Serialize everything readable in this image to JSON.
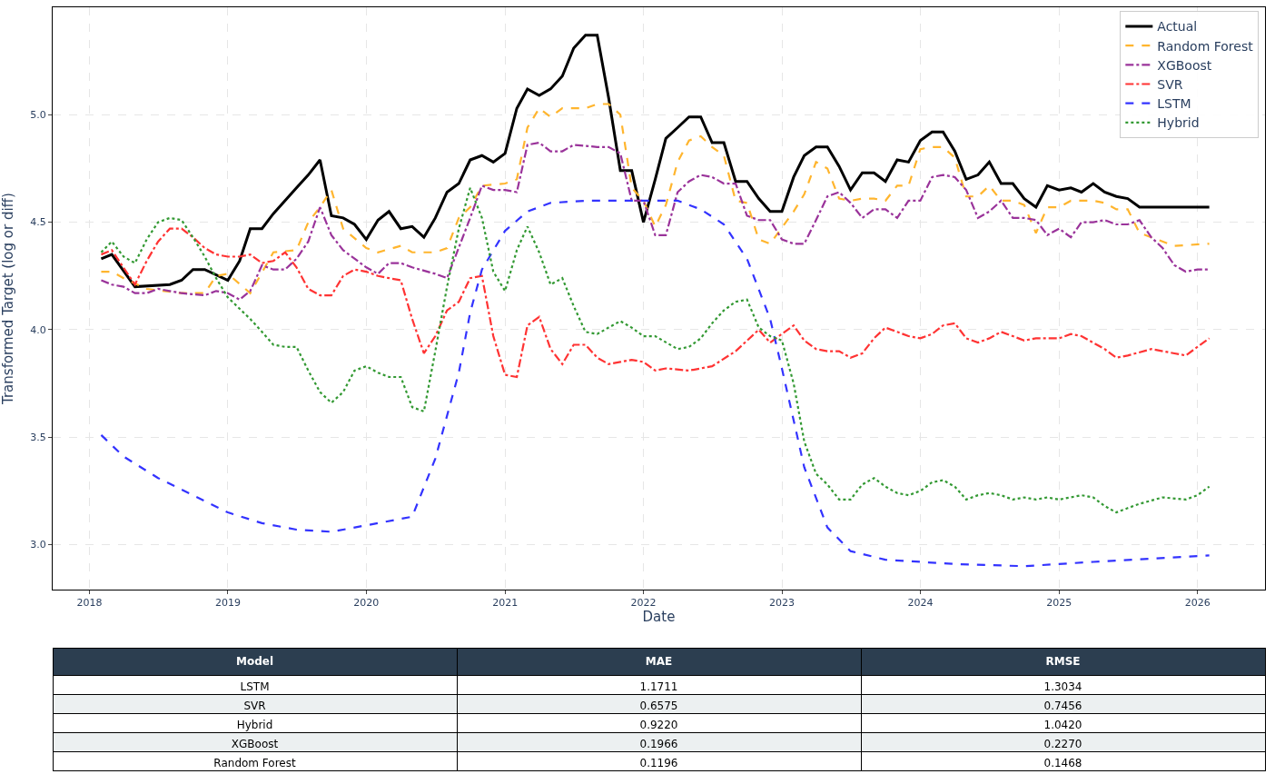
{
  "chart_data": [
    {
      "type": "line",
      "xlabel": "Date",
      "ylabel": "Transformed Target (log or diff)",
      "xlim": [
        "2017-09-26",
        "2026-06-28"
      ],
      "ylim": [
        2.79,
        5.5
      ],
      "xticks": [
        {
          "value": "2018-01-01",
          "label": "2018"
        },
        {
          "value": "2019-01-01",
          "label": "2019"
        },
        {
          "value": "2020-01-01",
          "label": "2020"
        },
        {
          "value": "2021-01-01",
          "label": "2021"
        },
        {
          "value": "2022-01-01",
          "label": "2022"
        },
        {
          "value": "2023-01-01",
          "label": "2023"
        },
        {
          "value": "2024-01-01",
          "label": "2024"
        },
        {
          "value": "2025-01-01",
          "label": "2025"
        },
        {
          "value": "2026-01-01",
          "label": "2026"
        }
      ],
      "yticks": [
        {
          "value": 3,
          "label": "3.0"
        },
        {
          "value": 3.5,
          "label": "3.5"
        },
        {
          "value": 4,
          "label": "4.0"
        },
        {
          "value": 4.5,
          "label": "4.5"
        },
        {
          "value": 5,
          "label": "5.0"
        }
      ],
      "grid": true,
      "legend": "top right",
      "marker": "none",
      "series": [
        {
          "name": "Actual",
          "color": "#000000",
          "line_style": "solid",
          "x": [
            "2018-02",
            "2018-03",
            "2018-05",
            "2018-08",
            "2018-09",
            "2018-10",
            "2018-11",
            "2019-01",
            "2019-02",
            "2019-03",
            "2019-04",
            "2019-05",
            "2019-07",
            "2019-08",
            "2019-09",
            "2019-10",
            "2019-11",
            "2019-12",
            "2020-01",
            "2020-02",
            "2020-03",
            "2020-04",
            "2020-05",
            "2020-06",
            "2020-07",
            "2020-08",
            "2020-09",
            "2020-10",
            "2020-11",
            "2020-12",
            "2021-01",
            "2021-02",
            "2021-03",
            "2021-04",
            "2021-05",
            "2021-06",
            "2021-07",
            "2021-08",
            "2021-09",
            "2021-10",
            "2021-11",
            "2021-12",
            "2022-01",
            "2022-02",
            "2022-03",
            "2022-04",
            "2022-05",
            "2022-06",
            "2022-07",
            "2022-08",
            "2022-09",
            "2022-10",
            "2022-11",
            "2022-12",
            "2023-01",
            "2023-02",
            "2023-03",
            "2023-04",
            "2023-05",
            "2023-06",
            "2023-07",
            "2023-08",
            "2023-09",
            "2023-10",
            "2023-11",
            "2023-12",
            "2024-01",
            "2024-02",
            "2024-03",
            "2024-04",
            "2024-05",
            "2024-06",
            "2024-07",
            "2024-08",
            "2024-09",
            "2024-10",
            "2024-11",
            "2024-12",
            "2025-01",
            "2025-02",
            "2025-03",
            "2025-04",
            "2025-05",
            "2025-06",
            "2025-07",
            "2025-08",
            "2026-02"
          ],
          "values": [
            4.33,
            4.35,
            4.2,
            4.21,
            4.23,
            4.28,
            4.28,
            4.23,
            4.32,
            4.47,
            4.47,
            4.54,
            4.66,
            4.72,
            4.79,
            4.53,
            4.52,
            4.49,
            4.42,
            4.51,
            4.55,
            4.47,
            4.48,
            4.43,
            4.52,
            4.64,
            4.68,
            4.79,
            4.81,
            4.78,
            4.82,
            5.03,
            5.12,
            5.09,
            5.12,
            5.18,
            5.31,
            5.37,
            5.37,
            5.08,
            4.74,
            4.74,
            4.5,
            4.7,
            4.89,
            4.94,
            4.99,
            4.99,
            4.87,
            4.87,
            4.69,
            4.69,
            4.61,
            4.55,
            4.55,
            4.71,
            4.81,
            4.85,
            4.85,
            4.76,
            4.65,
            4.73,
            4.73,
            4.69,
            4.79,
            4.78,
            4.88,
            4.92,
            4.92,
            4.83,
            4.7,
            4.72,
            4.78,
            4.68,
            4.68,
            4.61,
            4.57,
            4.67,
            4.65,
            4.66,
            4.64,
            4.68,
            4.64,
            4.62,
            4.61,
            4.57,
            4.57
          ]
        },
        {
          "name": "Random Forest",
          "color": "#ffb52e",
          "line_style": "dashed",
          "x": [
            "2018-02",
            "2018-03",
            "2018-04",
            "2018-06",
            "2018-09",
            "2018-11",
            "2018-12",
            "2019-01",
            "2019-03",
            "2019-05",
            "2019-07",
            "2019-08",
            "2019-09",
            "2019-10",
            "2019-11",
            "2020-01",
            "2020-02",
            "2020-04",
            "2020-05",
            "2020-07",
            "2020-08",
            "2020-09",
            "2020-10",
            "2020-11",
            "2021-01",
            "2021-02",
            "2021-03",
            "2021-04",
            "2021-05",
            "2021-06",
            "2021-08",
            "2021-09",
            "2021-10",
            "2021-11",
            "2021-12",
            "2022-01",
            "2022-02",
            "2022-03",
            "2022-04",
            "2022-05",
            "2022-06",
            "2022-07",
            "2022-08",
            "2022-09",
            "2022-10",
            "2022-11",
            "2022-12",
            "2023-02",
            "2023-03",
            "2023-04",
            "2023-05",
            "2023-06",
            "2023-07",
            "2023-08",
            "2023-09",
            "2023-10",
            "2023-11",
            "2023-12",
            "2024-01",
            "2024-02",
            "2024-03",
            "2024-04",
            "2024-05",
            "2024-06",
            "2024-07",
            "2024-08",
            "2024-09",
            "2024-10",
            "2024-11",
            "2024-12",
            "2025-01",
            "2025-02",
            "2025-04",
            "2025-05",
            "2025-06",
            "2025-07",
            "2025-08",
            "2025-09",
            "2025-11",
            "2026-02"
          ],
          "values": [
            4.27,
            4.27,
            4.24,
            4.19,
            4.17,
            4.17,
            4.25,
            4.26,
            4.17,
            4.36,
            4.37,
            4.5,
            4.57,
            4.65,
            4.47,
            4.38,
            4.36,
            4.39,
            4.36,
            4.36,
            4.38,
            4.52,
            4.57,
            4.67,
            4.68,
            4.7,
            4.94,
            5.03,
            4.99,
            5.03,
            5.03,
            5.05,
            5.05,
            5.0,
            4.66,
            4.6,
            4.48,
            4.58,
            4.78,
            4.88,
            4.9,
            4.85,
            4.81,
            4.6,
            4.59,
            4.42,
            4.4,
            4.55,
            4.63,
            4.78,
            4.75,
            4.61,
            4.6,
            4.61,
            4.61,
            4.6,
            4.67,
            4.67,
            4.84,
            4.85,
            4.85,
            4.8,
            4.62,
            4.62,
            4.67,
            4.6,
            4.6,
            4.58,
            4.45,
            4.57,
            4.57,
            4.6,
            4.6,
            4.59,
            4.56,
            4.56,
            4.45,
            4.43,
            4.39,
            4.4
          ]
        },
        {
          "name": "XGBoost",
          "color": "#9a339a",
          "line_style": "dashdot",
          "x": [
            "2018-02",
            "2018-03",
            "2018-04",
            "2018-05",
            "2018-06",
            "2018-07",
            "2018-09",
            "2018-11",
            "2018-12",
            "2019-01",
            "2019-02",
            "2019-03",
            "2019-04",
            "2019-05",
            "2019-06",
            "2019-07",
            "2019-08",
            "2019-09",
            "2019-10",
            "2019-11",
            "2020-01",
            "2020-02",
            "2020-03",
            "2020-04",
            "2020-05",
            "2020-07",
            "2020-08",
            "2020-10",
            "2020-11",
            "2020-12",
            "2021-01",
            "2021-02",
            "2021-03",
            "2021-04",
            "2021-05",
            "2021-06",
            "2021-07",
            "2021-09",
            "2021-10",
            "2021-11",
            "2021-12",
            "2022-01",
            "2022-02",
            "2022-03",
            "2022-04",
            "2022-05",
            "2022-06",
            "2022-07",
            "2022-08",
            "2022-09",
            "2022-10",
            "2022-11",
            "2022-12",
            "2023-01",
            "2023-02",
            "2023-03",
            "2023-04",
            "2023-05",
            "2023-06",
            "2023-07",
            "2023-08",
            "2023-09",
            "2023-10",
            "2023-11",
            "2023-12",
            "2024-01",
            "2024-02",
            "2024-03",
            "2024-04",
            "2024-05",
            "2024-06",
            "2024-07",
            "2024-08",
            "2024-09",
            "2024-10",
            "2024-11",
            "2024-12",
            "2025-01",
            "2025-02",
            "2025-03",
            "2025-04",
            "2025-05",
            "2025-06",
            "2025-07",
            "2025-08",
            "2025-09",
            "2025-10",
            "2025-11",
            "2025-12",
            "2026-01",
            "2026-02"
          ],
          "values": [
            4.23,
            4.21,
            4.2,
            4.17,
            4.17,
            4.19,
            4.17,
            4.16,
            4.18,
            4.17,
            4.14,
            4.18,
            4.3,
            4.28,
            4.28,
            4.33,
            4.41,
            4.57,
            4.44,
            4.37,
            4.29,
            4.26,
            4.31,
            4.31,
            4.29,
            4.26,
            4.24,
            4.52,
            4.67,
            4.65,
            4.65,
            4.64,
            4.86,
            4.87,
            4.83,
            4.83,
            4.86,
            4.85,
            4.85,
            4.82,
            4.6,
            4.6,
            4.44,
            4.44,
            4.64,
            4.69,
            4.72,
            4.71,
            4.68,
            4.68,
            4.53,
            4.51,
            4.51,
            4.42,
            4.4,
            4.4,
            4.51,
            4.62,
            4.64,
            4.59,
            4.52,
            4.56,
            4.56,
            4.52,
            4.6,
            4.6,
            4.71,
            4.72,
            4.71,
            4.65,
            4.52,
            4.55,
            4.6,
            4.52,
            4.52,
            4.51,
            4.44,
            4.47,
            4.43,
            4.5,
            4.5,
            4.51,
            4.49,
            4.49,
            4.51,
            4.43,
            4.38,
            4.3,
            4.27,
            4.28,
            4.28
          ]
        },
        {
          "name": "SVR",
          "color": "#ff3333",
          "line_style": "dashdot",
          "x": [
            "2018-02",
            "2018-03",
            "2018-05",
            "2018-06",
            "2018-07",
            "2018-08",
            "2018-09",
            "2018-10",
            "2018-11",
            "2018-12",
            "2019-01",
            "2019-02",
            "2019-03",
            "2019-04",
            "2019-05",
            "2019-06",
            "2019-07",
            "2019-08",
            "2019-09",
            "2019-10",
            "2019-11",
            "2019-12",
            "2020-01",
            "2020-02",
            "2020-03",
            "2020-04",
            "2020-05",
            "2020-06",
            "2020-07",
            "2020-08",
            "2020-09",
            "2020-10",
            "2020-11",
            "2020-12",
            "2021-01",
            "2021-02",
            "2021-03",
            "2021-04",
            "2021-05",
            "2021-06",
            "2021-07",
            "2021-08",
            "2021-09",
            "2021-10",
            "2021-11",
            "2021-12",
            "2022-01",
            "2022-02",
            "2022-03",
            "2022-05",
            "2022-07",
            "2022-09",
            "2022-11",
            "2022-12",
            "2023-01",
            "2023-02",
            "2023-03",
            "2023-04",
            "2023-05",
            "2023-06",
            "2023-07",
            "2023-08",
            "2023-09",
            "2023-10",
            "2023-11",
            "2023-12",
            "2024-01",
            "2024-02",
            "2024-03",
            "2024-04",
            "2024-05",
            "2024-06",
            "2024-07",
            "2024-08",
            "2024-09",
            "2024-10",
            "2024-11",
            "2024-12",
            "2025-01",
            "2025-02",
            "2025-03",
            "2025-05",
            "2025-06",
            "2025-07",
            "2025-09",
            "2025-11",
            "2025-12",
            "2026-02"
          ],
          "values": [
            4.35,
            4.37,
            4.21,
            4.32,
            4.41,
            4.47,
            4.47,
            4.43,
            4.38,
            4.35,
            4.34,
            4.34,
            4.35,
            4.31,
            4.32,
            4.36,
            4.29,
            4.19,
            4.16,
            4.16,
            4.25,
            4.28,
            4.27,
            4.25,
            4.24,
            4.23,
            4.05,
            3.89,
            3.97,
            4.09,
            4.13,
            4.24,
            4.25,
            3.97,
            3.79,
            3.78,
            4.02,
            4.06,
            3.91,
            3.84,
            3.93,
            3.93,
            3.87,
            3.84,
            3.85,
            3.86,
            3.85,
            3.81,
            3.82,
            3.81,
            3.83,
            3.9,
            4.0,
            3.94,
            3.98,
            4.02,
            3.95,
            3.91,
            3.9,
            3.9,
            3.87,
            3.89,
            3.96,
            4.01,
            3.99,
            3.97,
            3.96,
            3.98,
            4.02,
            4.03,
            3.96,
            3.94,
            3.96,
            3.99,
            3.97,
            3.95,
            3.96,
            3.96,
            3.96,
            3.98,
            3.97,
            3.91,
            3.87,
            3.88,
            3.91,
            3.89,
            3.88,
            3.96
          ]
        },
        {
          "name": "LSTM",
          "color": "#3333ff",
          "line_style": "dashed",
          "x": [
            "2018-02",
            "2018-04",
            "2018-07",
            "2018-10",
            "2019-01",
            "2019-04",
            "2019-07",
            "2019-10",
            "2020-01",
            "2020-05",
            "2020-07",
            "2020-09",
            "2020-10",
            "2020-11",
            "2021-01",
            "2021-03",
            "2021-05",
            "2021-08",
            "2022-04",
            "2022-06",
            "2022-08",
            "2022-10",
            "2022-12",
            "2023-01",
            "2023-03",
            "2023-05",
            "2023-07",
            "2023-10",
            "2024-04",
            "2024-10",
            "2025-04",
            "2026-02"
          ],
          "values": [
            3.51,
            3.41,
            3.31,
            3.23,
            3.15,
            3.1,
            3.07,
            3.06,
            3.09,
            3.13,
            3.4,
            3.8,
            4.08,
            4.28,
            4.46,
            4.55,
            4.59,
            4.6,
            4.6,
            4.56,
            4.49,
            4.33,
            4.05,
            3.82,
            3.36,
            3.08,
            2.97,
            2.93,
            2.91,
            2.9,
            2.92,
            2.95
          ]
        },
        {
          "name": "Hybrid",
          "color": "#339933",
          "line_style": "dotted",
          "x": [
            "2018-02",
            "2018-03",
            "2018-04",
            "2018-05",
            "2018-06",
            "2018-07",
            "2018-08",
            "2018-09",
            "2018-10",
            "2018-11",
            "2018-12",
            "2019-01",
            "2019-03",
            "2019-04",
            "2019-05",
            "2019-06",
            "2019-07",
            "2019-08",
            "2019-09",
            "2019-10",
            "2019-11",
            "2019-12",
            "2020-01",
            "2020-02",
            "2020-03",
            "2020-04",
            "2020-05",
            "2020-06",
            "2020-07",
            "2020-08",
            "2020-09",
            "2020-10",
            "2020-11",
            "2020-12",
            "2021-01",
            "2021-02",
            "2021-03",
            "2021-04",
            "2021-05",
            "2021-06",
            "2021-07",
            "2021-08",
            "2021-09",
            "2021-10",
            "2021-11",
            "2021-12",
            "2022-01",
            "2022-02",
            "2022-04",
            "2022-05",
            "2022-06",
            "2022-07",
            "2022-08",
            "2022-09",
            "2022-10",
            "2022-11",
            "2022-12",
            "2023-01",
            "2023-02",
            "2023-03",
            "2023-04",
            "2023-05",
            "2023-06",
            "2023-07",
            "2023-08",
            "2023-09",
            "2023-10",
            "2023-11",
            "2023-12",
            "2024-01",
            "2024-02",
            "2024-03",
            "2024-04",
            "2024-05",
            "2024-06",
            "2024-07",
            "2024-08",
            "2024-09",
            "2024-10",
            "2024-11",
            "2024-12",
            "2025-01",
            "2025-03",
            "2025-04",
            "2025-05",
            "2025-06",
            "2025-07",
            "2025-08",
            "2025-10",
            "2025-12",
            "2026-01",
            "2026-02"
          ],
          "values": [
            4.36,
            4.41,
            4.34,
            4.31,
            4.42,
            4.5,
            4.52,
            4.51,
            4.43,
            4.34,
            4.24,
            4.15,
            4.05,
            3.99,
            3.93,
            3.92,
            3.92,
            3.81,
            3.71,
            3.66,
            3.71,
            3.81,
            3.83,
            3.8,
            3.78,
            3.78,
            3.64,
            3.62,
            3.9,
            4.2,
            4.47,
            4.66,
            4.52,
            4.27,
            4.18,
            4.37,
            4.48,
            4.36,
            4.21,
            4.24,
            4.11,
            3.99,
            3.98,
            4.01,
            4.04,
            4.01,
            3.97,
            3.97,
            3.91,
            3.92,
            3.96,
            4.03,
            4.09,
            4.13,
            4.14,
            4.01,
            3.97,
            3.95,
            3.75,
            3.48,
            3.33,
            3.28,
            3.21,
            3.21,
            3.28,
            3.31,
            3.27,
            3.24,
            3.23,
            3.25,
            3.29,
            3.3,
            3.27,
            3.21,
            3.23,
            3.24,
            3.23,
            3.21,
            3.22,
            3.21,
            3.22,
            3.21,
            3.23,
            3.22,
            3.18,
            3.15,
            3.17,
            3.19,
            3.22,
            3.21,
            3.23,
            3.27
          ]
        }
      ]
    },
    {
      "type": "other",
      "categories": [
        "Model",
        "MAE",
        "RMSE"
      ],
      "annotations": [
        "LSTM",
        "1.1711",
        "1.3034",
        "SVR",
        "0.6575",
        "0.7456",
        "Hybrid",
        "0.9220",
        "1.0420",
        "XGBoost",
        "0.1966",
        "0.2270",
        "Random Forest",
        "0.1196",
        "0.1468"
      ]
    }
  ]
}
